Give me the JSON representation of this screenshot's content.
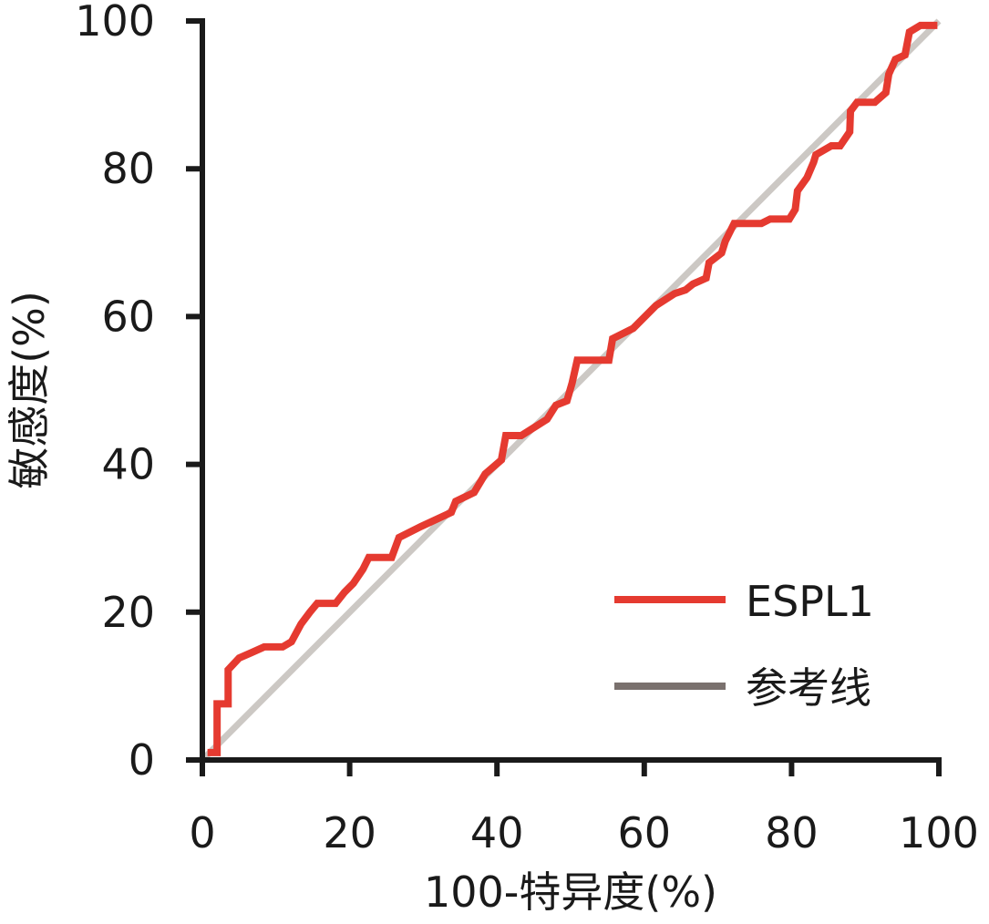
{
  "chart_data": {
    "type": "line",
    "title": "",
    "xlabel": "100-特异度(%)",
    "ylabel": "敏感度(%)",
    "xlim": [
      0,
      100
    ],
    "ylim": [
      0,
      100
    ],
    "xticks": [
      "0",
      "20",
      "40",
      "60",
      "80",
      "100"
    ],
    "yticks": [
      "0",
      "20",
      "40",
      "60",
      "80",
      "100"
    ],
    "grid": false,
    "legend_position": "bottom-right",
    "series": [
      {
        "name": "ESPL1",
        "color": "#e53a30",
        "points": [
          [
            0.7,
            1.0
          ],
          [
            2,
            1
          ],
          [
            2,
            7.6
          ],
          [
            3.5,
            7.6
          ],
          [
            3.5,
            12.2
          ],
          [
            5,
            13.8
          ],
          [
            6.6,
            14.5
          ],
          [
            8.4,
            15.3
          ],
          [
            10.9,
            15.3
          ],
          [
            12.1,
            16
          ],
          [
            13.4,
            18.4
          ],
          [
            14.6,
            20
          ],
          [
            15.6,
            21.2
          ],
          [
            18.1,
            21.2
          ],
          [
            19.3,
            22.7
          ],
          [
            20.5,
            23.9
          ],
          [
            21.8,
            25.8
          ],
          [
            22.6,
            27.4
          ],
          [
            25.7,
            27.4
          ],
          [
            26.7,
            30.1
          ],
          [
            29.7,
            31.6
          ],
          [
            33.8,
            33.5
          ],
          [
            34.4,
            35
          ],
          [
            36.9,
            36.2
          ],
          [
            38.4,
            38.7
          ],
          [
            40.6,
            40.6
          ],
          [
            41.2,
            43.9
          ],
          [
            43.3,
            43.9
          ],
          [
            46.8,
            46.1
          ],
          [
            48,
            48
          ],
          [
            49.5,
            48.6
          ],
          [
            50.2,
            51
          ],
          [
            50.9,
            54.1
          ],
          [
            55.2,
            54.1
          ],
          [
            55.7,
            57
          ],
          [
            58.5,
            58.4
          ],
          [
            61.6,
            61.5
          ],
          [
            64.1,
            63.1
          ],
          [
            65.6,
            63.6
          ],
          [
            66.6,
            64.4
          ],
          [
            68.4,
            65.2
          ],
          [
            68.8,
            67.3
          ],
          [
            70.5,
            68.6
          ],
          [
            71,
            70.2
          ],
          [
            72.2,
            72.6
          ],
          [
            75.9,
            72.6
          ],
          [
            77.1,
            73.2
          ],
          [
            79.7,
            73.2
          ],
          [
            80.5,
            74.5
          ],
          [
            80.8,
            77
          ],
          [
            82.1,
            78.8
          ],
          [
            83.0,
            80.9
          ],
          [
            83.3,
            81.9
          ],
          [
            85.4,
            83.1
          ],
          [
            86.6,
            83.1
          ],
          [
            87.9,
            85
          ],
          [
            88,
            87.8
          ],
          [
            88.9,
            89
          ],
          [
            91.3,
            89
          ],
          [
            92.8,
            90.3
          ],
          [
            93.2,
            92.8
          ],
          [
            94.1,
            94.8
          ],
          [
            95.4,
            95.4
          ],
          [
            96,
            98.5
          ],
          [
            97.5,
            99.4
          ],
          [
            99.8,
            99.4
          ]
        ]
      },
      {
        "name": "参考线",
        "color": "#ccc8c4",
        "legend_color": "#7a716e",
        "points": [
          [
            0,
            0
          ],
          [
            100,
            100
          ]
        ]
      }
    ]
  }
}
